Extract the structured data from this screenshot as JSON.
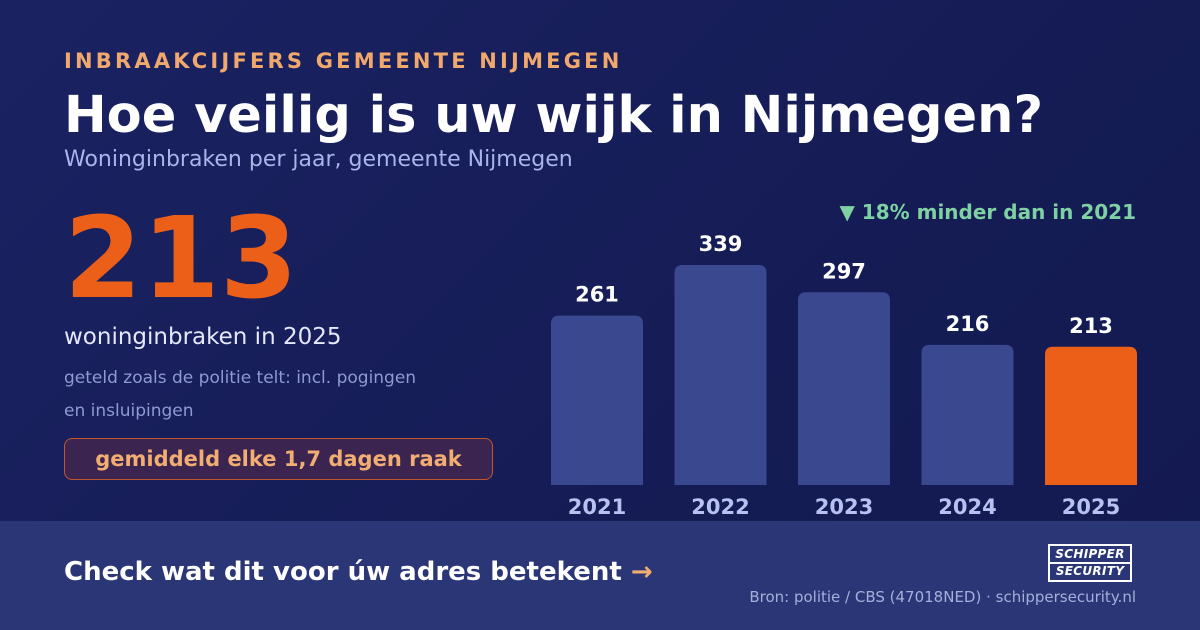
{
  "header": {
    "eyebrow": "INBRAAKCIJFERS GEMEENTE NIJMEGEN",
    "title": "Hoe veilig is uw wijk in Nijmegen?",
    "subtitle": "Woninginbraken per jaar, gemeente Nijmegen"
  },
  "highlight": {
    "value": "213",
    "caption": "woninginbraken in 2025",
    "note": "geteld zoals de politie telt: incl. pogingen en insluipingen",
    "pill": "gemiddeld elke 1,7 dagen raak"
  },
  "delta": "▼ 18% minder dan in 2021",
  "footer": {
    "cta_text": "Check wat dit voor úw adres betekent",
    "cta_arrow": "→",
    "logo_line1": "SCHIPPER",
    "logo_line2": "SECURITY",
    "source": "Bron: politie / CBS (47018NED) · schippersecurity.nl"
  },
  "colors": {
    "background": "#151c55",
    "bar": "#3a4890",
    "bar_highlight": "#ec5f18",
    "accent": "#f0a86c",
    "positive": "#7fd0a3"
  },
  "chart_data": {
    "type": "bar",
    "categories": [
      "2021",
      "2022",
      "2023",
      "2024",
      "2025"
    ],
    "values": [
      261,
      339,
      297,
      216,
      213
    ],
    "highlight_index": 4,
    "title": "",
    "xlabel": "",
    "ylabel": "",
    "ylim": [
      0,
      339
    ],
    "grid": false,
    "legend": "none"
  }
}
